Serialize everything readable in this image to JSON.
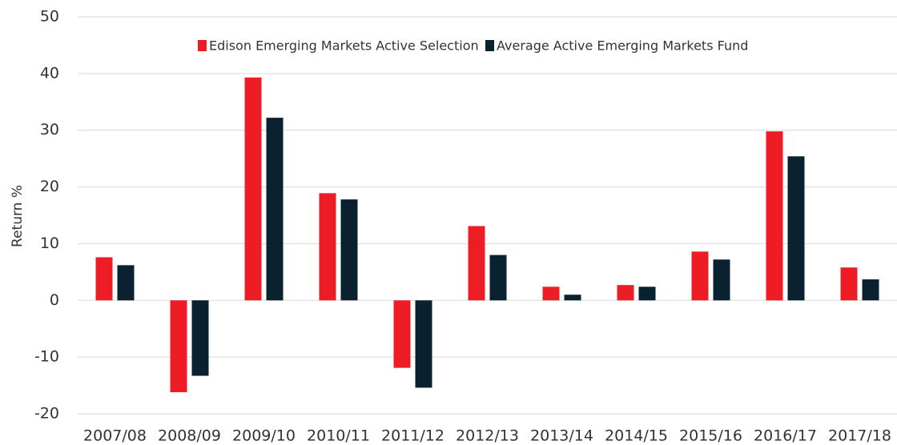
{
  "chart_data": {
    "type": "bar",
    "y_label": "Return %",
    "categories": [
      "2007/08",
      "2008/09",
      "2009/10",
      "2010/11",
      "2011/12",
      "2012/13",
      "2013/14",
      "2014/15",
      "2015/16",
      "2016/17",
      "2017/18"
    ],
    "series": [
      {
        "name": "Edison Emerging Markets Active Selection",
        "color": "#ee1c25",
        "values": [
          7.6,
          -16.2,
          39.3,
          18.9,
          -11.9,
          13.1,
          2.4,
          2.7,
          8.6,
          29.8,
          5.8
        ]
      },
      {
        "name": "Average Active Emerging Markets Fund",
        "color": "#0a2230",
        "values": [
          6.2,
          -13.3,
          32.2,
          17.8,
          -15.4,
          8.0,
          1.0,
          2.4,
          7.2,
          25.4,
          3.7
        ]
      }
    ],
    "ylim": [
      -20,
      50
    ],
    "yticks": [
      -20,
      -10,
      0,
      10,
      20,
      30,
      40,
      50
    ],
    "grid": true,
    "legend": "top"
  }
}
